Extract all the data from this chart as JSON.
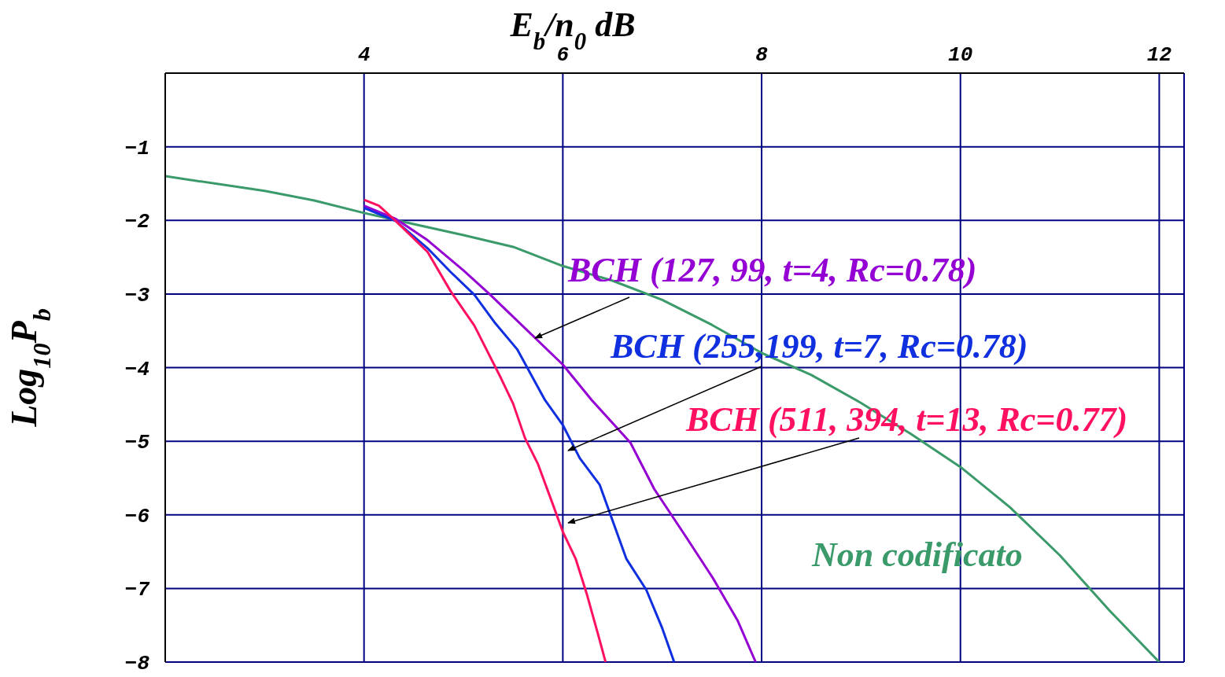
{
  "chart_data": {
    "type": "line",
    "xlabel": "E$_{b}$/n$_{0}$ dB",
    "ylabel": "Log$_{10}$P$_{b}$",
    "xlim": [
      2,
      12.25
    ],
    "xticks": [
      4,
      6,
      8,
      10,
      12
    ],
    "ylim": [
      -8,
      0
    ],
    "yticks": [
      -1,
      -2,
      -3,
      -4,
      -5,
      -6,
      -7,
      -8
    ],
    "grid": true,
    "marker": "none",
    "line_style": "solid",
    "series": [
      {
        "name": "Non codificato",
        "color": "#3a9a6a",
        "x": [
          2,
          3,
          3.5,
          4,
          4.5,
          5,
          5.5,
          6,
          6.5,
          7,
          7.5,
          8,
          8.5,
          9,
          9.5,
          10,
          10.5,
          11,
          11.5,
          12
        ],
        "values": [
          -1.4,
          -1.6,
          -1.73,
          -1.9,
          -2.05,
          -2.2,
          -2.36,
          -2.62,
          -2.82,
          -3.08,
          -3.42,
          -3.8,
          -4.1,
          -4.48,
          -4.9,
          -5.35,
          -5.9,
          -6.55,
          -7.3,
          -8
        ]
      },
      {
        "name": "BCH (127, 99, t=4, Rc=0.78)",
        "color": "#9400d3",
        "x": [
          4,
          4.32,
          4.64,
          5,
          5.27,
          5.5,
          6,
          6.29,
          6.68,
          6.92,
          7.23,
          7.51,
          7.76,
          7.94
        ],
        "values": [
          -1.8,
          -1.98,
          -2.27,
          -2.68,
          -3.01,
          -3.31,
          -3.96,
          -4.44,
          -5.02,
          -5.65,
          -6.28,
          -6.86,
          -7.44,
          -8
        ]
      },
      {
        "name": "BCH (255,199, t=7, Rc=0.78)",
        "color": "#1030e0",
        "x": [
          4,
          4.32,
          4.64,
          4.87,
          5.11,
          5.31,
          5.54,
          5.82,
          6,
          6.17,
          6.37,
          6.64,
          6.84,
          7,
          7.12
        ],
        "values": [
          -1.83,
          -2.01,
          -2.38,
          -2.7,
          -3.01,
          -3.38,
          -3.75,
          -4.44,
          -4.78,
          -5.23,
          -5.59,
          -6.6,
          -7.02,
          -7.54,
          -8
        ]
      },
      {
        "name": "BCH (511, 394, t=13, Rc=0.77)",
        "color": "#ff1060",
        "x": [
          4,
          4.15,
          4.32,
          4.64,
          4.87,
          5.11,
          5.38,
          5.5,
          5.62,
          5.75,
          5.9,
          6,
          6.13,
          6.24,
          6.37,
          6.43
        ],
        "values": [
          -1.72,
          -1.8,
          -2.01,
          -2.43,
          -2.96,
          -3.43,
          -4.15,
          -4.49,
          -4.96,
          -5.31,
          -5.86,
          -6.23,
          -6.6,
          -7.07,
          -7.7,
          -8
        ]
      }
    ]
  }
}
